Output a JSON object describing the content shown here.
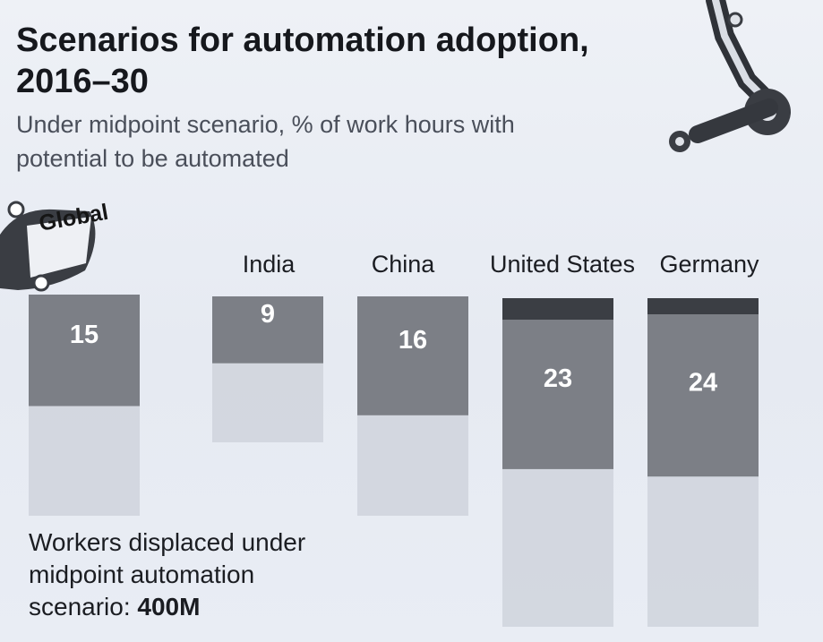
{
  "title": "Scenarios for automation adoption, 2016–30",
  "subtitle": "Under midpoint scenario, % of work hours with potential to be automated",
  "global_tag": "Global",
  "footnote": {
    "text": "Workers displaced under midpoint automation scenario: ",
    "value": "400M"
  },
  "colors": {
    "bar_fill": "#7c7f86",
    "bar_cap": "#3b3e44",
    "bar_background": "#cfd4dc",
    "value_text": "#ffffff"
  },
  "chart_data": {
    "type": "bar",
    "categories": [
      "Global",
      "India",
      "China",
      "United States",
      "Germany"
    ],
    "values": [
      15,
      9,
      16,
      23,
      24
    ],
    "data_labels": [
      "15",
      "9",
      "16",
      "23",
      "24"
    ],
    "title": "Scenarios for automation adoption, 2016–30",
    "ylabel": "",
    "xlabel": "",
    "ylim": [
      0,
      30
    ],
    "grid": false,
    "legend": "none"
  }
}
